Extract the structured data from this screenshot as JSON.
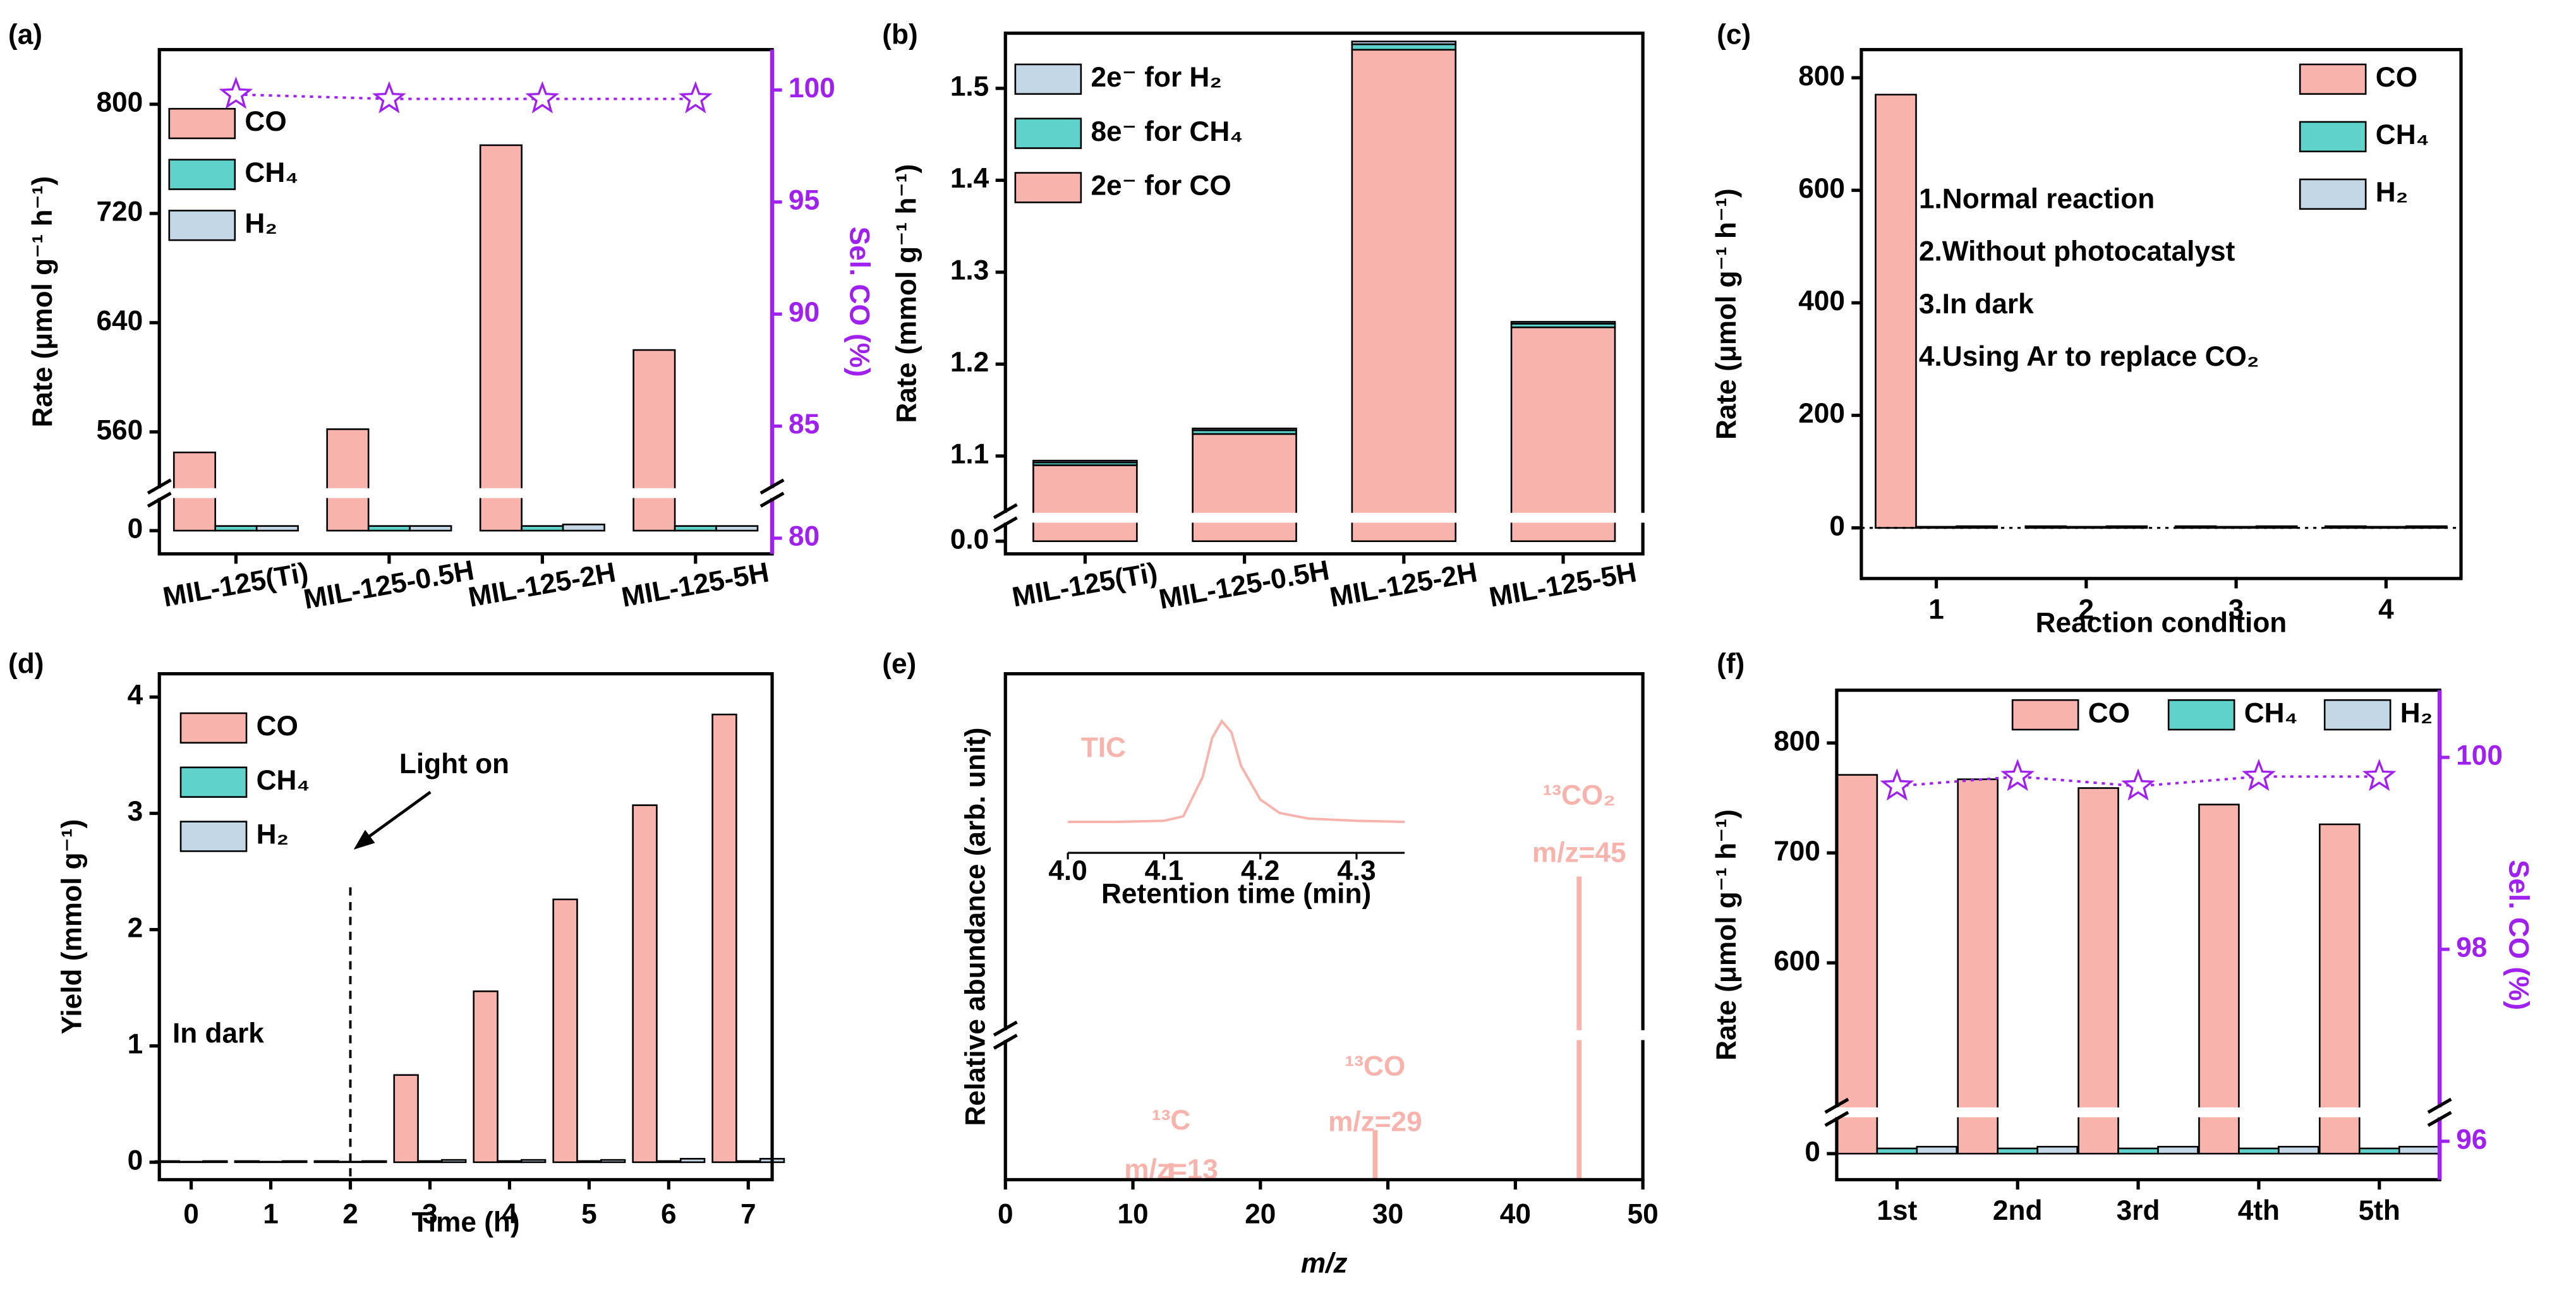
{
  "chart_data": [
    {
      "panel": "(a)",
      "type": "bar",
      "categories": [
        "MIL-125(Ti)",
        "MIL-125-0.5H",
        "MIL-125-2H",
        "MIL-125-5H"
      ],
      "series": [
        {
          "name": "CO",
          "color": "#f8b4ac",
          "values": [
            545,
            562,
            770,
            620
          ]
        },
        {
          "name": "CH₄",
          "color": "#5fd3cb",
          "values": [
            3,
            3,
            3,
            3
          ]
        },
        {
          "name": "H₂",
          "color": "#c3d7e6",
          "values": [
            3,
            3,
            4,
            3
          ]
        },
        {
          "color": "#a020f0",
          "values": [
            99.8,
            99.6,
            99.6,
            99.6
          ],
          "axis": "y2",
          "marker": "star"
        }
      ],
      "ylabel": "Rate (μmol g⁻¹ h⁻¹)",
      "y2label": "Sel. CO (%)",
      "ylim": [
        -15,
        840
      ],
      "ybreak": [
        20,
        520
      ],
      "yticks": [
        0,
        560,
        640,
        720,
        800
      ],
      "y2lim": [
        79.3,
        101.8
      ],
      "y2ticks": [
        80,
        85,
        90,
        95,
        100
      ],
      "legend": "upper left"
    },
    {
      "panel": "(b)",
      "type": "stacked_bar",
      "categories": [
        "MIL-125(Ti)",
        "MIL-125-0.5H",
        "MIL-125-2H",
        "MIL-125-5H"
      ],
      "series": [
        {
          "name": "2e⁻ for CO",
          "color": "#f8b4ac",
          "values": [
            1.09,
            1.124,
            1.542,
            1.24
          ]
        },
        {
          "name": "8e⁻ for CH₄",
          "color": "#5fd3cb",
          "values": [
            0.003,
            0.004,
            0.006,
            0.004
          ]
        },
        {
          "name": "2e⁻ for H₂",
          "color": "#c3d7e6",
          "values": [
            0.002,
            0.002,
            0.003,
            0.002
          ]
        }
      ],
      "ylabel": "Rate (mmol g⁻¹ h⁻¹)",
      "ylim": [
        -0.015,
        1.56
      ],
      "ybreak": [
        0.02,
        1.04
      ],
      "yticks": [
        {
          "value": 0,
          "label": "0.0"
        },
        1.1,
        1.2,
        1.3,
        1.4,
        1.5
      ],
      "legend": "upper left"
    },
    {
      "panel": "(c)",
      "type": "bar",
      "categories": [
        "1",
        "2",
        "3",
        "4"
      ],
      "series": [
        {
          "name": "CO",
          "color": "#f8b4ac",
          "values": [
            770,
            3,
            3,
            3
          ]
        },
        {
          "name": "CH₄",
          "color": "#5fd3cb",
          "values": [
            2,
            2,
            2,
            2
          ]
        },
        {
          "name": "H₂",
          "color": "#c3d7e6",
          "values": [
            3,
            3,
            3,
            3
          ]
        }
      ],
      "xlabel": "Reaction condition",
      "ylabel": "Rate (μmol g⁻¹ h⁻¹)",
      "ylim": [
        -90,
        850
      ],
      "yticks": [
        0,
        200,
        400,
        600,
        800
      ],
      "hline": 0,
      "annotations": [
        "1.Normal reaction",
        "2.Without photocatalyst",
        "3.In dark",
        "4.Using Ar to replace CO₂"
      ],
      "legend": "upper right"
    },
    {
      "panel": "(d)",
      "type": "bar",
      "x": [
        0,
        1,
        2,
        3,
        4,
        5,
        6,
        7
      ],
      "series": [
        {
          "name": "CO",
          "color": "#f8b4ac",
          "values": [
            0.01,
            0.01,
            0.01,
            0.75,
            1.47,
            2.26,
            3.07,
            3.85
          ]
        },
        {
          "name": "CH₄",
          "color": "#5fd3cb",
          "values": [
            0.005,
            0.005,
            0.005,
            0.01,
            0.01,
            0.01,
            0.01,
            0.01
          ]
        },
        {
          "name": "H₂",
          "color": "#c3d7e6",
          "values": [
            0.01,
            0.01,
            0.01,
            0.02,
            0.02,
            0.02,
            0.03,
            0.03
          ]
        }
      ],
      "xlabel": "Time (h)",
      "ylabel": "Yield (mmol g⁻¹)",
      "xlim": [
        -0.4,
        7.3
      ],
      "xticks": [
        0,
        1,
        2,
        3,
        4,
        5,
        6,
        7
      ],
      "ylim": [
        -0.15,
        4.2
      ],
      "yticks": [
        0,
        1,
        2,
        3,
        4
      ],
      "vline": 2,
      "annotations": [
        "Light on",
        "In dark"
      ],
      "legend": "upper left"
    },
    {
      "panel": "(e)",
      "type": "stem",
      "x": [
        13,
        29,
        45
      ],
      "values": [
        0.03,
        0.09,
        1.0
      ],
      "color": "#f8b4ac",
      "peak_labels": [
        [
          "¹³C",
          "m/z=13"
        ],
        [
          "¹³CO",
          "m/z=29"
        ],
        [
          "¹³CO₂",
          "m/z=45"
        ]
      ],
      "xlabel": "m/z",
      "ylabel": "Relative abundance (arb. unit)",
      "xlim": [
        0,
        50
      ],
      "xticks": [
        0,
        10,
        20,
        30,
        40,
        50
      ],
      "ylim": [
        0,
        1.4
      ],
      "ybreak": [
        0.25,
        0.7
      ],
      "inset": {
        "type": "line",
        "label": "TIC",
        "xlabel": "Retention time (min)",
        "x": [
          4.0,
          4.05,
          4.1,
          4.12,
          4.14,
          4.15,
          4.16,
          4.17,
          4.18,
          4.2,
          4.22,
          4.25,
          4.3,
          4.35
        ],
        "values": [
          0.1,
          0.1,
          0.11,
          0.15,
          0.5,
          0.85,
          1.0,
          0.9,
          0.6,
          0.3,
          0.18,
          0.13,
          0.11,
          0.1
        ],
        "color": "#f8b4ac",
        "xlim": [
          4.0,
          4.35
        ],
        "xticks": [
          {
            "value": 4,
            "label": "4.0"
          },
          4.1,
          4.2,
          4.3
        ],
        "ylim": [
          0,
          1.1
        ]
      }
    },
    {
      "panel": "(f)",
      "type": "bar",
      "categories": [
        "1st",
        "2nd",
        "3rd",
        "4th",
        "5th"
      ],
      "series": [
        {
          "name": "CO",
          "color": "#f8b4ac",
          "values": [
            771,
            767,
            759,
            744,
            726
          ]
        },
        {
          "name": "CH₄",
          "color": "#5fd3cb",
          "values": [
            3,
            3,
            3,
            3,
            3
          ]
        },
        {
          "name": "H₂",
          "color": "#c3d7e6",
          "values": [
            4,
            4,
            4,
            4,
            4
          ]
        },
        {
          "color": "#a020f0",
          "values": [
            99.7,
            99.8,
            99.7,
            99.8,
            99.8
          ],
          "axis": "y2",
          "marker": "star"
        }
      ],
      "ylabel": "Rate (μmol g⁻¹ h⁻¹)",
      "y2label": "Sel. CO (%)",
      "ylim": [
        -15,
        848
      ],
      "ybreak": [
        20,
        470
      ],
      "yticks": [
        0,
        600,
        700,
        800
      ],
      "y2lim": [
        95.6,
        100.7
      ],
      "y2ticks": [
        96,
        98,
        100
      ],
      "legend": "upper center"
    }
  ]
}
